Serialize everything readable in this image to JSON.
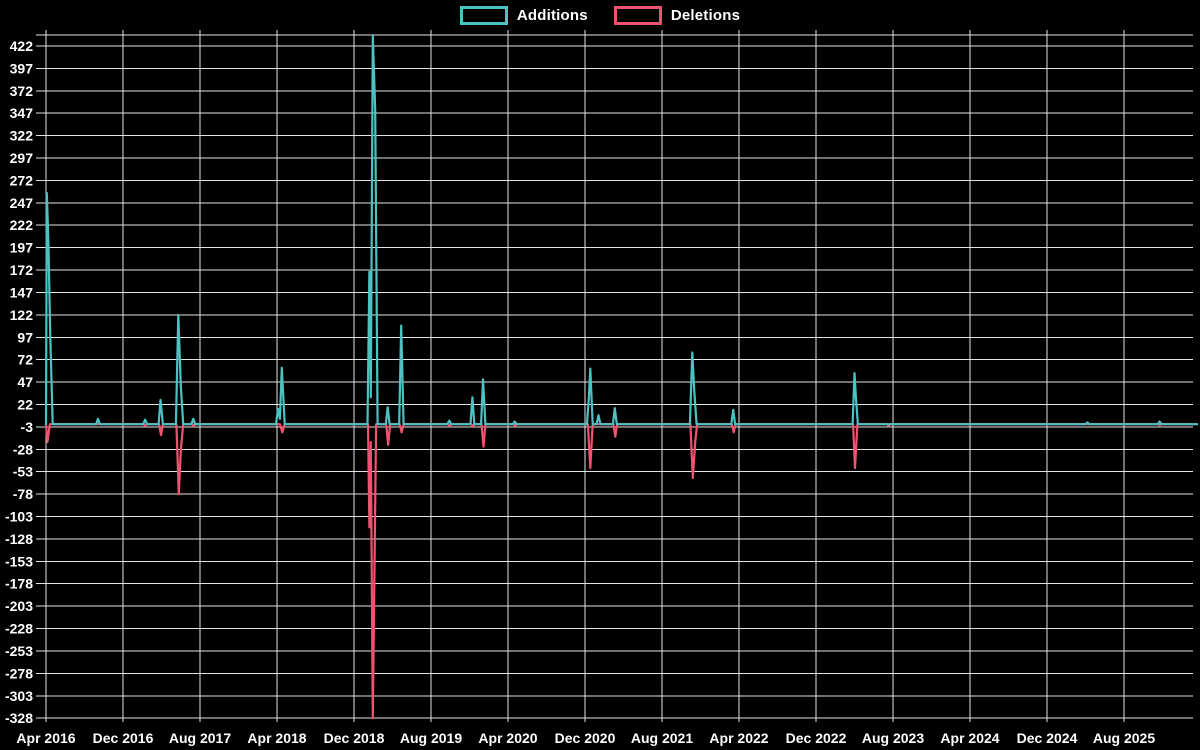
{
  "legend": {
    "items": [
      {
        "label": "Additions"
      },
      {
        "label": "Deletions"
      }
    ]
  },
  "chart_data": {
    "type": "line",
    "title": "",
    "background": "#000000",
    "grid_color": "#e3e3e3",
    "text_color": "#ffffff",
    "x_axis": {
      "tick_labels": [
        "Apr 2016",
        "Dec 2016",
        "Aug 2017",
        "Apr 2018",
        "Dec 2018",
        "Aug 2019",
        "Apr 2020",
        "Dec 2020",
        "Aug 2021",
        "Apr 2022",
        "Dec 2022",
        "Aug 2023",
        "Apr 2024",
        "Dec 2024",
        "Aug 2025"
      ],
      "tick_interval_months": 8
    },
    "y_axis": {
      "tick_labels": [
        422,
        397,
        372,
        347,
        322,
        297,
        272,
        247,
        222,
        197,
        172,
        147,
        122,
        97,
        72,
        47,
        22,
        -3,
        -28,
        -53,
        -78,
        -103,
        -128,
        -153,
        -178,
        -203,
        -228,
        -253,
        -278,
        -303,
        -328
      ],
      "min": -340,
      "max": 435
    },
    "series": [
      {
        "name": "Additions",
        "color": "#4dc2c2",
        "x_unit": "months since Apr 2016",
        "points": [
          [
            0,
            0
          ],
          [
            0.08,
            258
          ],
          [
            0.25,
            203
          ],
          [
            0.45,
            97
          ],
          [
            0.7,
            0
          ],
          [
            5.2,
            0
          ],
          [
            5.4,
            6
          ],
          [
            5.6,
            0
          ],
          [
            10.1,
            0
          ],
          [
            10.3,
            5
          ],
          [
            10.5,
            0
          ],
          [
            11.7,
            0
          ],
          [
            11.9,
            27
          ],
          [
            12.15,
            0
          ],
          [
            13.5,
            0
          ],
          [
            13.75,
            122
          ],
          [
            14.0,
            43
          ],
          [
            14.25,
            0
          ],
          [
            15.1,
            0
          ],
          [
            15.3,
            6
          ],
          [
            15.5,
            0
          ],
          [
            23.9,
            0
          ],
          [
            24.1,
            17
          ],
          [
            24.3,
            6
          ],
          [
            24.5,
            63
          ],
          [
            24.8,
            0
          ],
          [
            33.4,
            0
          ],
          [
            33.6,
            170
          ],
          [
            33.75,
            30
          ],
          [
            33.95,
            434
          ],
          [
            34.2,
            350
          ],
          [
            34.45,
            0
          ],
          [
            35.3,
            0
          ],
          [
            35.5,
            19
          ],
          [
            35.7,
            0
          ],
          [
            36.7,
            0
          ],
          [
            36.9,
            110
          ],
          [
            37.15,
            0
          ],
          [
            41.7,
            0
          ],
          [
            41.9,
            4
          ],
          [
            42.1,
            0
          ],
          [
            44.1,
            0
          ],
          [
            44.3,
            30
          ],
          [
            44.5,
            0
          ],
          [
            45.2,
            0
          ],
          [
            45.4,
            50
          ],
          [
            45.65,
            0
          ],
          [
            48.5,
            0
          ],
          [
            48.7,
            3
          ],
          [
            48.9,
            0
          ],
          [
            56.2,
            0
          ],
          [
            56.4,
            30
          ],
          [
            56.55,
            62
          ],
          [
            56.8,
            0
          ],
          [
            57.2,
            0
          ],
          [
            57.4,
            10
          ],
          [
            57.6,
            0
          ],
          [
            58.9,
            0
          ],
          [
            59.1,
            18
          ],
          [
            59.3,
            0
          ],
          [
            66.9,
            0
          ],
          [
            67.15,
            80
          ],
          [
            67.35,
            38
          ],
          [
            67.6,
            0
          ],
          [
            71.2,
            0
          ],
          [
            71.4,
            16
          ],
          [
            71.6,
            0
          ],
          [
            83.8,
            0
          ],
          [
            84.0,
            57
          ],
          [
            84.15,
            30
          ],
          [
            84.35,
            0
          ],
          [
            108.0,
            0
          ],
          [
            108.2,
            2
          ],
          [
            108.4,
            0
          ],
          [
            115.5,
            0
          ],
          [
            115.7,
            3
          ],
          [
            115.9,
            0
          ],
          [
            119.6,
            0
          ]
        ]
      },
      {
        "name": "Deletions",
        "color": "#f0536f",
        "x_unit": "months since Apr 2016",
        "points": [
          [
            0,
            0
          ],
          [
            0.15,
            -20
          ],
          [
            0.4,
            0
          ],
          [
            10.15,
            0
          ],
          [
            10.3,
            -2
          ],
          [
            10.45,
            0
          ],
          [
            11.75,
            0
          ],
          [
            11.95,
            -12
          ],
          [
            12.15,
            0
          ],
          [
            13.55,
            0
          ],
          [
            13.8,
            -78
          ],
          [
            14.0,
            -29
          ],
          [
            14.25,
            0
          ],
          [
            15.2,
            0
          ],
          [
            15.35,
            -2
          ],
          [
            15.5,
            0
          ],
          [
            24.3,
            0
          ],
          [
            24.55,
            -9
          ],
          [
            24.8,
            0
          ],
          [
            33.45,
            0
          ],
          [
            33.6,
            -115
          ],
          [
            33.75,
            -20
          ],
          [
            33.95,
            -328
          ],
          [
            34.3,
            0
          ],
          [
            35.35,
            0
          ],
          [
            35.55,
            -23
          ],
          [
            35.75,
            0
          ],
          [
            36.75,
            0
          ],
          [
            36.95,
            -9
          ],
          [
            37.15,
            0
          ],
          [
            41.75,
            0
          ],
          [
            41.95,
            -2
          ],
          [
            42.1,
            0
          ],
          [
            44.2,
            0
          ],
          [
            44.35,
            -3
          ],
          [
            44.5,
            0
          ],
          [
            45.25,
            0
          ],
          [
            45.45,
            -25
          ],
          [
            45.65,
            0
          ],
          [
            48.6,
            0
          ],
          [
            48.75,
            -2
          ],
          [
            48.9,
            0
          ],
          [
            56.3,
            0
          ],
          [
            56.55,
            -49
          ],
          [
            56.8,
            0
          ],
          [
            58.95,
            0
          ],
          [
            59.15,
            -14
          ],
          [
            59.35,
            0
          ],
          [
            66.95,
            0
          ],
          [
            67.2,
            -60
          ],
          [
            67.45,
            -20
          ],
          [
            67.65,
            0
          ],
          [
            71.25,
            0
          ],
          [
            71.45,
            -9
          ],
          [
            71.65,
            0
          ],
          [
            83.85,
            0
          ],
          [
            84.05,
            -49
          ],
          [
            84.3,
            0
          ],
          [
            87.4,
            0
          ],
          [
            87.55,
            -2
          ],
          [
            87.7,
            0
          ],
          [
            115.55,
            0
          ],
          [
            115.7,
            -1
          ],
          [
            115.9,
            0
          ],
          [
            119.6,
            0
          ]
        ]
      }
    ]
  }
}
